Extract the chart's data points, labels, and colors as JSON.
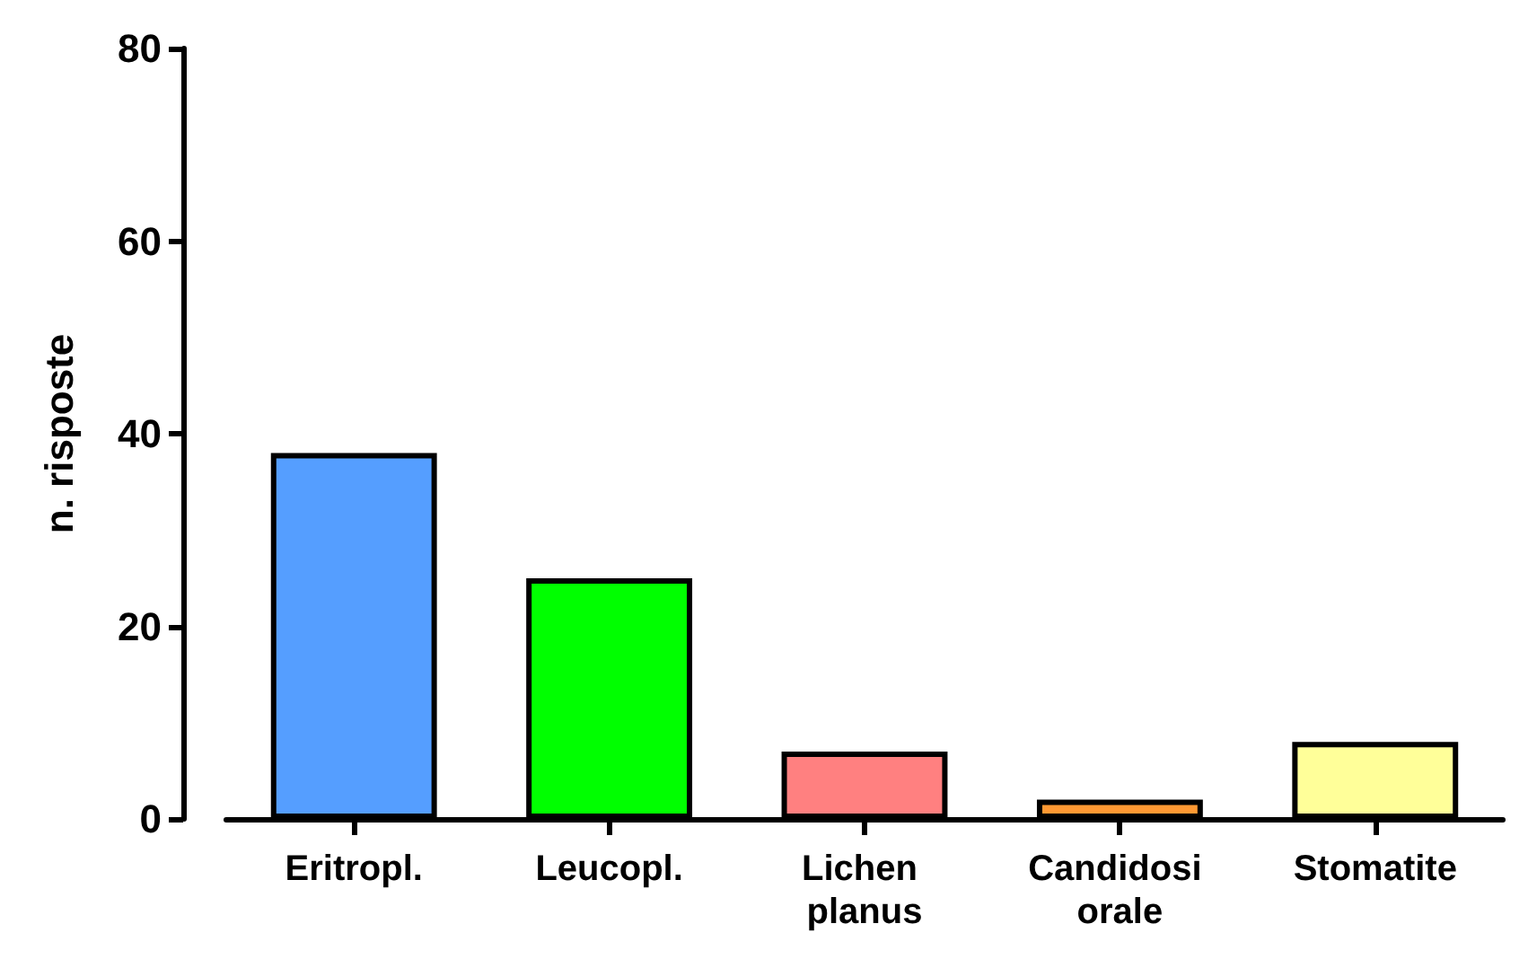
{
  "chart_data": {
    "type": "bar",
    "ylabel": "n. risposte",
    "categories": [
      "Eritropl.",
      "Leucopl.",
      "Lichen planus",
      "Candidosi orale",
      "Stomatite"
    ],
    "values": [
      38,
      25,
      7,
      2,
      8
    ],
    "colors": [
      "#559eff",
      "#00ff00",
      "#ff8080",
      "#ff9933",
      "#ffff99"
    ],
    "ylim": [
      0,
      80
    ],
    "yticks": [
      0,
      20,
      40,
      60,
      80
    ],
    "grid": false
  }
}
